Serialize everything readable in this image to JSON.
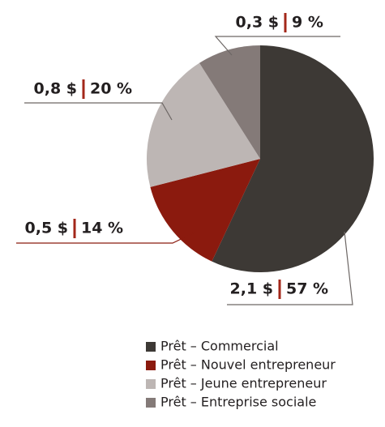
{
  "chart_data": {
    "type": "pie",
    "categories": [
      "Prêt – Commercial",
      "Prêt – Nouvel entrepreneur",
      "Prêt – Jeune entrepreneur",
      "Prêt – Entreprise sociale"
    ],
    "values": [
      57,
      14,
      20,
      9
    ],
    "value_labels": [
      "57 %",
      "14 %",
      "20 %",
      "9 %"
    ],
    "amounts": [
      2.1,
      0.5,
      0.8,
      0.3
    ],
    "amount_labels": [
      "2,1 $",
      "0,5 $",
      "0,8 $",
      "0,3 $"
    ],
    "colors": [
      "#3d3935",
      "#8b1a0e",
      "#bdb6b4",
      "#847a78"
    ]
  }
}
